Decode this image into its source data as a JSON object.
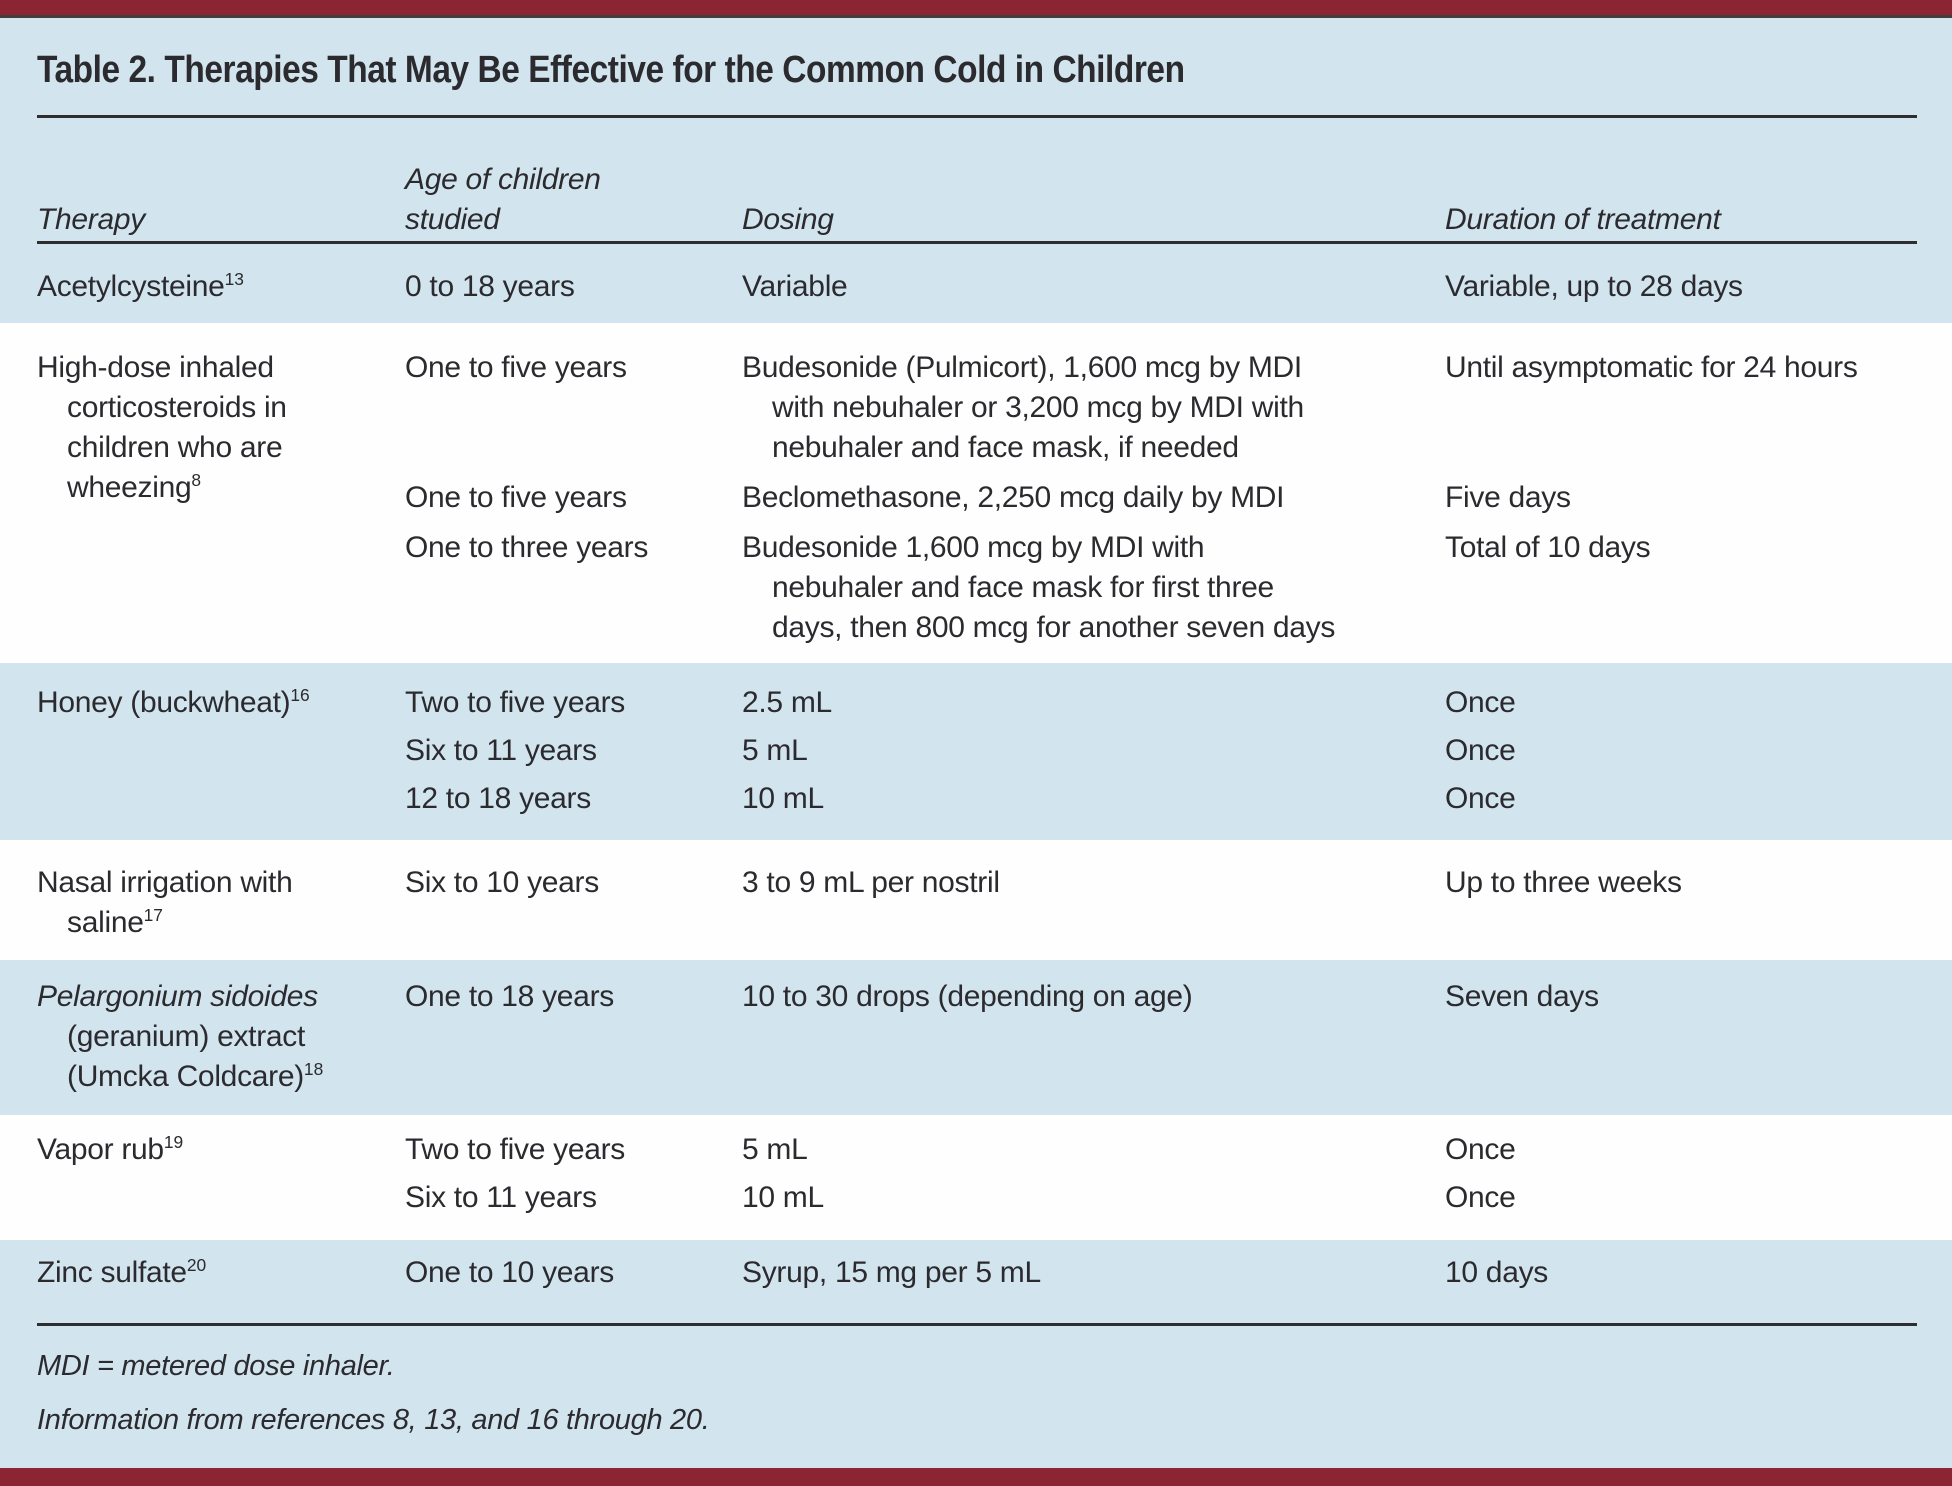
{
  "title": "Table 2. Therapies That May Be Effective for the Common Cold in Children",
  "columns": [
    "Therapy",
    "Age of children\nstudied",
    "Dosing",
    "Duration of treatment"
  ],
  "rows": [
    {
      "therapy": {
        "text": "Acetylcysteine",
        "ref": "13"
      },
      "entries": [
        {
          "age": "0 to 18 years",
          "dosing": "Variable",
          "duration": "Variable, up to 28 days"
        }
      ]
    },
    {
      "therapy": {
        "text": "High-dose inhaled\ncorticosteroids in\nchildren who are\nwheezing",
        "ref": "8"
      },
      "entries": [
        {
          "age": "One to five years",
          "dosing": "Budesonide (Pulmicort), 1,600 mcg by MDI\nwith nebuhaler or 3,200 mcg by MDI with\nnebuhaler and face mask, if needed",
          "duration": "Until asymptomatic for 24 hours"
        },
        {
          "age": "One to five years",
          "dosing": "Beclomethasone, 2,250 mcg daily by MDI",
          "duration": "Five days"
        },
        {
          "age": "One to three years",
          "dosing": "Budesonide 1,600 mcg by MDI with\nnebuhaler and face mask for first three\ndays, then 800 mcg for another seven days",
          "duration": "Total of 10 days"
        }
      ]
    },
    {
      "therapy": {
        "text": "Honey (buckwheat)",
        "ref": "16"
      },
      "entries": [
        {
          "age": "Two to five years",
          "dosing": "2.5 mL",
          "duration": "Once"
        },
        {
          "age": "Six to 11 years",
          "dosing": "5 mL",
          "duration": "Once"
        },
        {
          "age": "12 to 18 years",
          "dosing": "10 mL",
          "duration": "Once"
        }
      ]
    },
    {
      "therapy": {
        "text": "Nasal irrigation with\nsaline",
        "ref": "17"
      },
      "entries": [
        {
          "age": "Six to 10 years",
          "dosing": "3 to 9 mL per nostril",
          "duration": "Up to three weeks"
        }
      ]
    },
    {
      "therapy": {
        "italic": "Pelargonium sidoides",
        "text": "\n(geranium) extract\n(Umcka Coldcare)",
        "ref": "18"
      },
      "entries": [
        {
          "age": "One to 18 years",
          "dosing": "10 to 30 drops (depending on age)",
          "duration": "Seven days"
        }
      ]
    },
    {
      "therapy": {
        "text": "Vapor rub",
        "ref": "19"
      },
      "entries": [
        {
          "age": "Two to five years",
          "dosing": "5 mL",
          "duration": "Once"
        },
        {
          "age": "Six to 11 years",
          "dosing": "10 mL",
          "duration": "Once"
        }
      ]
    },
    {
      "therapy": {
        "text": "Zinc sulfate",
        "ref": "20"
      },
      "entries": [
        {
          "age": "One to 10 years",
          "dosing": "Syrup, 15 mg per 5 mL",
          "duration": "10 days"
        }
      ]
    }
  ],
  "footnotes": {
    "abbreviation": "MDI = metered dose inhaler.",
    "source": "Information from references 8, 13, and 16 through 20."
  },
  "colors": {
    "bar_maroon": "#8b2433",
    "background_blue": "#d2e4ee",
    "row_white": "#fefefe",
    "text": "#2b2a2e"
  }
}
